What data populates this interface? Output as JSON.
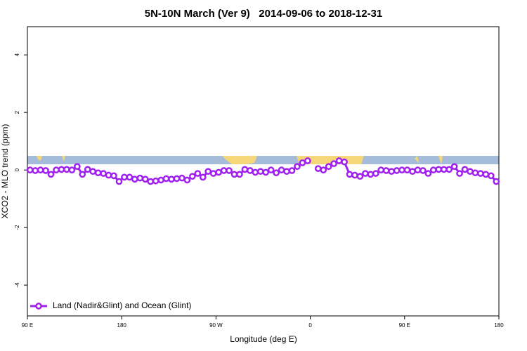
{
  "chart_data": {
    "type": "line",
    "title": "5N-10N March (Ver 9)   2014-09-06 to 2018-12-31",
    "x_label": "Longitude (deg E)",
    "y_label": "XCO2 - MLO trend (ppm)",
    "x": [
      92.5,
      97.5,
      102.5,
      107.5,
      112.5,
      117.5,
      122.5,
      127.5,
      132.5,
      137.5,
      142.5,
      147.5,
      152.5,
      157.5,
      162.5,
      167.5,
      172.5,
      177.5,
      182.5,
      187.5,
      192.5,
      197.5,
      202.5,
      207.5,
      212.5,
      217.5,
      222.5,
      227.5,
      232.5,
      237.5,
      242.5,
      247.5,
      252.5,
      257.5,
      262.5,
      267.5,
      272.5,
      277.5,
      282.5,
      287.5,
      292.5,
      297.5,
      302.5,
      307.5,
      312.5,
      317.5,
      322.5,
      327.5,
      332.5,
      337.5,
      342.5,
      347.5,
      352.5,
      357.5,
      362.5,
      367.5,
      372.5,
      377.5,
      382.5,
      387.5,
      392.5,
      397.5,
      402.5,
      407.5,
      412.5,
      417.5,
      422.5,
      427.5,
      432.5,
      437.5,
      442.5,
      447.5,
      452.5,
      457.5,
      462.5,
      467.5,
      472.5,
      477.5,
      482.5,
      487.5,
      492.5,
      497.5,
      502.5,
      507.5,
      512.5,
      517.5,
      522.5,
      527.5,
      532.5,
      537.5
    ],
    "series": [
      {
        "name": "Land (Nadir&Glint) and Ocean (Glint)",
        "color": "#a020f0",
        "values": [
          0.0,
          -0.02,
          0.0,
          -0.02,
          -0.15,
          0.0,
          0.02,
          0.02,
          0.0,
          0.12,
          -0.15,
          0.02,
          -0.05,
          -0.1,
          -0.12,
          -0.18,
          -0.2,
          -0.4,
          -0.25,
          -0.25,
          -0.32,
          -0.28,
          -0.32,
          -0.4,
          -0.38,
          -0.35,
          -0.3,
          -0.32,
          -0.3,
          -0.28,
          -0.35,
          -0.22,
          -0.12,
          -0.25,
          -0.05,
          -0.12,
          -0.08,
          -0.02,
          -0.02,
          -0.15,
          -0.15,
          0.02,
          -0.02,
          -0.08,
          -0.05,
          -0.08,
          0.0,
          -0.1,
          0.0,
          -0.05,
          -0.02,
          0.12,
          0.25,
          0.32,
          null,
          0.05,
          0.0,
          0.12,
          0.22,
          0.32,
          0.28,
          -0.15,
          -0.18,
          -0.22,
          -0.12,
          -0.15,
          -0.12,
          0.0,
          -0.02,
          -0.05,
          -0.02,
          0.0,
          0.0,
          -0.05,
          0.0,
          -0.02,
          -0.12,
          0.0,
          0.02,
          0.02,
          0.02,
          0.12,
          -0.12,
          0.02,
          -0.05,
          -0.1,
          -0.12,
          -0.15,
          -0.2,
          -0.4
        ]
      }
    ],
    "xlim": [
      90,
      540
    ],
    "xticks": [
      {
        "value": 90,
        "label": "90 E"
      },
      180,
      {
        "value": 270,
        "label": "90 W"
      },
      {
        "value": 360,
        "label": "0"
      },
      {
        "value": 450,
        "label": "90 E"
      },
      {
        "value": 540,
        "label": "180"
      }
    ],
    "ylim": [
      -5.07,
      4.98
    ],
    "yticks": [
      -4,
      -2,
      0,
      2,
      4
    ],
    "legend": "bottom-left"
  }
}
